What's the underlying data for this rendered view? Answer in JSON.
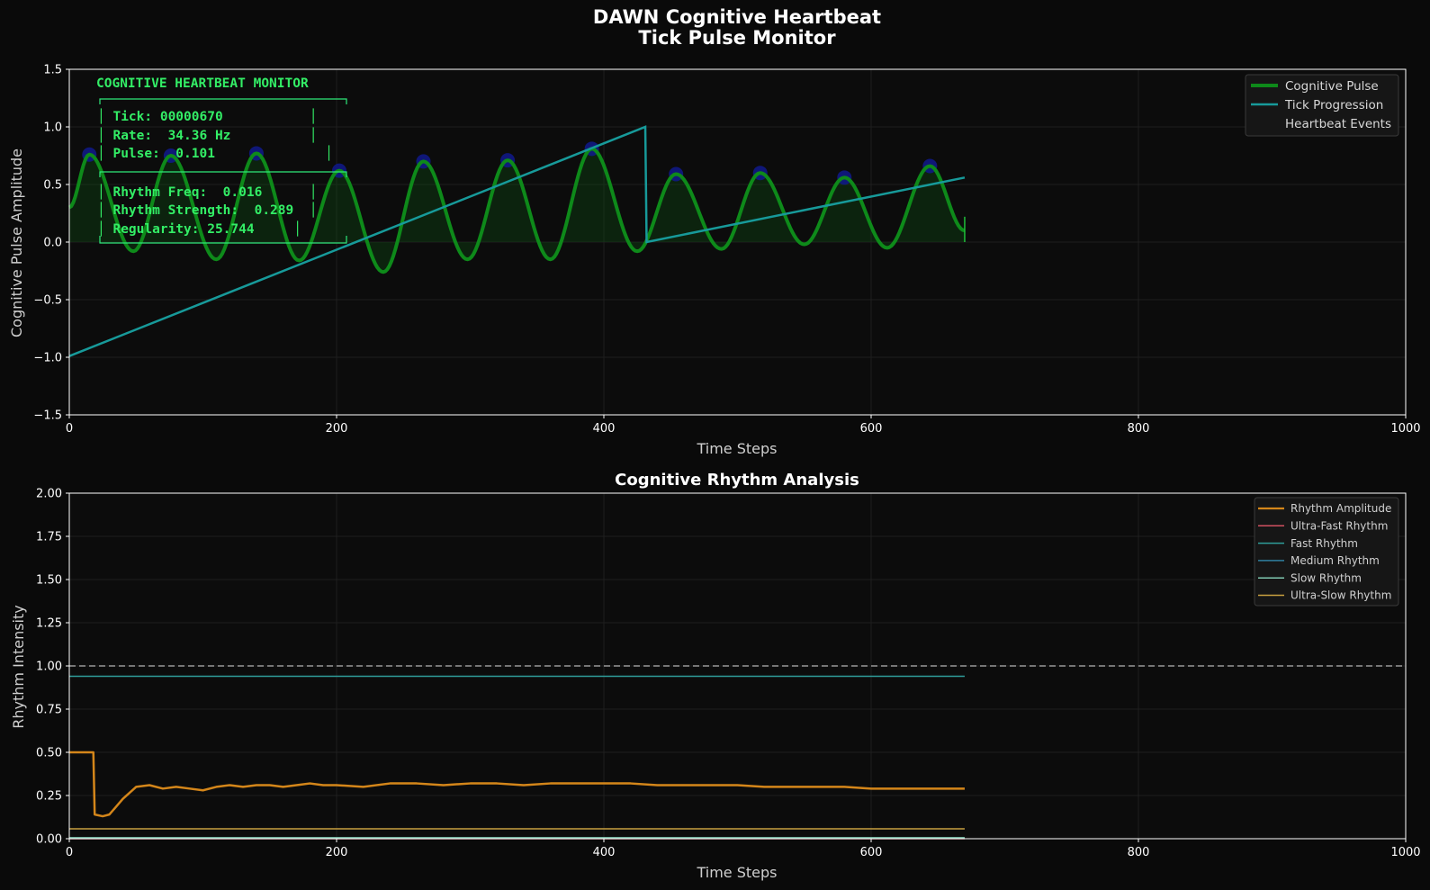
{
  "header": {
    "title_line1": "DAWN Cognitive Heartbeat",
    "title_line2": "Tick Pulse Monitor"
  },
  "colors": {
    "background": "#0a0a0a",
    "pulse": "#0e8a1a",
    "tick": "#179a9a",
    "events": "#101a8c",
    "rhythm_amplitude": "#d4861a",
    "ultra_fast": "#d05060",
    "fast": "#2f9e9a",
    "medium": "#2f7fa0",
    "slow": "#7fc8b0",
    "ultra_slow": "#c8a040",
    "terminal": "#33ee66"
  },
  "monitor": {
    "heading": "COGNITIVE HEARTBEAT MONITOR",
    "lines": [
      "│ Tick: 00000670           │",
      "│ Rate:  34.36 Hz          │",
      "│ Pulse:  0.101              │",
      "│ Rhythm Freq:  0.016      │",
      "│ Rhythm Strength:  0.289  │",
      "│ Regularity: 25.744     │"
    ]
  },
  "chart_data": [
    {
      "type": "line",
      "title": "",
      "xlabel": "Time Steps",
      "ylabel": "Cognitive Pulse Amplitude",
      "xlim": [
        0,
        1000
      ],
      "ylim": [
        -1.5,
        1.5
      ],
      "xticks": [
        "0",
        "200",
        "400",
        "600",
        "800",
        "1000"
      ],
      "yticks": [
        "−1.5",
        "−1.0",
        "−0.5",
        "0.0",
        "0.5",
        "1.0",
        "1.5"
      ],
      "grid": true,
      "legend_position": "top-right",
      "legend": [
        "Cognitive Pulse",
        "Tick Progression",
        "Heartbeat Events"
      ],
      "series": [
        {
          "name": "Cognitive Pulse",
          "x_end": 670,
          "peaks": [
            {
              "x": 15,
              "y": 0.76
            },
            {
              "x": 76,
              "y": 0.75
            },
            {
              "x": 140,
              "y": 0.77
            },
            {
              "x": 202,
              "y": 0.62
            },
            {
              "x": 265,
              "y": 0.7
            },
            {
              "x": 328,
              "y": 0.71
            },
            {
              "x": 391,
              "y": 0.81
            },
            {
              "x": 454,
              "y": 0.59
            },
            {
              "x": 517,
              "y": 0.6
            },
            {
              "x": 580,
              "y": 0.56
            },
            {
              "x": 644,
              "y": 0.66
            }
          ],
          "troughs": [
            {
              "x": 48,
              "y": -0.08
            },
            {
              "x": 110,
              "y": -0.15
            },
            {
              "x": 172,
              "y": -0.16
            },
            {
              "x": 235,
              "y": -0.26
            },
            {
              "x": 298,
              "y": -0.15
            },
            {
              "x": 360,
              "y": -0.15
            },
            {
              "x": 425,
              "y": -0.08
            },
            {
              "x": 488,
              "y": -0.06
            },
            {
              "x": 550,
              "y": -0.02
            },
            {
              "x": 612,
              "y": -0.05
            }
          ],
          "start_y": 0.3,
          "end_y": 0.1
        },
        {
          "name": "Tick Progression",
          "x": [
            0,
            431,
            432,
            670
          ],
          "y": [
            -0.99,
            1.0,
            0.0,
            0.56
          ]
        },
        {
          "name": "Heartbeat Events",
          "x": [
            15,
            76,
            140,
            202,
            265,
            328,
            391,
            454,
            517,
            580,
            644
          ],
          "y": [
            0.76,
            0.75,
            0.77,
            0.62,
            0.7,
            0.71,
            0.81,
            0.59,
            0.6,
            0.56,
            0.66
          ]
        }
      ]
    },
    {
      "type": "line",
      "title": "Cognitive Rhythm Analysis",
      "xlabel": "Time Steps",
      "ylabel": "Rhythm Intensity",
      "xlim": [
        0,
        1000
      ],
      "ylim": [
        0,
        2
      ],
      "xticks": [
        "0",
        "200",
        "400",
        "600",
        "800",
        "1000"
      ],
      "yticks": [
        "0.00",
        "0.25",
        "0.50",
        "0.75",
        "1.00",
        "1.25",
        "1.50",
        "1.75",
        "2.00"
      ],
      "grid": true,
      "legend_position": "top-right",
      "reference_line_y": 1.0,
      "series": [
        {
          "name": "Rhythm Amplitude",
          "x": [
            0,
            18,
            19,
            25,
            30,
            40,
            50,
            60,
            70,
            80,
            90,
            100,
            110,
            120,
            130,
            140,
            150,
            160,
            170,
            180,
            190,
            200,
            220,
            240,
            260,
            280,
            300,
            320,
            340,
            360,
            380,
            400,
            420,
            440,
            460,
            480,
            500,
            520,
            540,
            560,
            580,
            600,
            620,
            640,
            670
          ],
          "y": [
            0.5,
            0.5,
            0.14,
            0.13,
            0.14,
            0.23,
            0.3,
            0.31,
            0.29,
            0.3,
            0.29,
            0.28,
            0.3,
            0.31,
            0.3,
            0.31,
            0.31,
            0.3,
            0.31,
            0.32,
            0.31,
            0.31,
            0.3,
            0.32,
            0.32,
            0.31,
            0.32,
            0.32,
            0.31,
            0.32,
            0.32,
            0.32,
            0.32,
            0.31,
            0.31,
            0.31,
            0.31,
            0.3,
            0.3,
            0.3,
            0.3,
            0.29,
            0.29,
            0.29,
            0.29
          ]
        },
        {
          "name": "Ultra-Fast Rhythm",
          "x": [
            0,
            670
          ],
          "y": [
            0.0,
            0.0
          ]
        },
        {
          "name": "Fast Rhythm",
          "x": [
            0,
            670
          ],
          "y": [
            0.94,
            0.94
          ]
        },
        {
          "name": "Medium Rhythm",
          "x": [
            0,
            670
          ],
          "y": [
            0.003,
            0.003
          ]
        },
        {
          "name": "Slow Rhythm",
          "x": [
            0,
            670
          ],
          "y": [
            0.006,
            0.006
          ]
        },
        {
          "name": "Ultra-Slow Rhythm",
          "x": [
            0,
            670
          ],
          "y": [
            0.057,
            0.057
          ]
        }
      ]
    }
  ]
}
